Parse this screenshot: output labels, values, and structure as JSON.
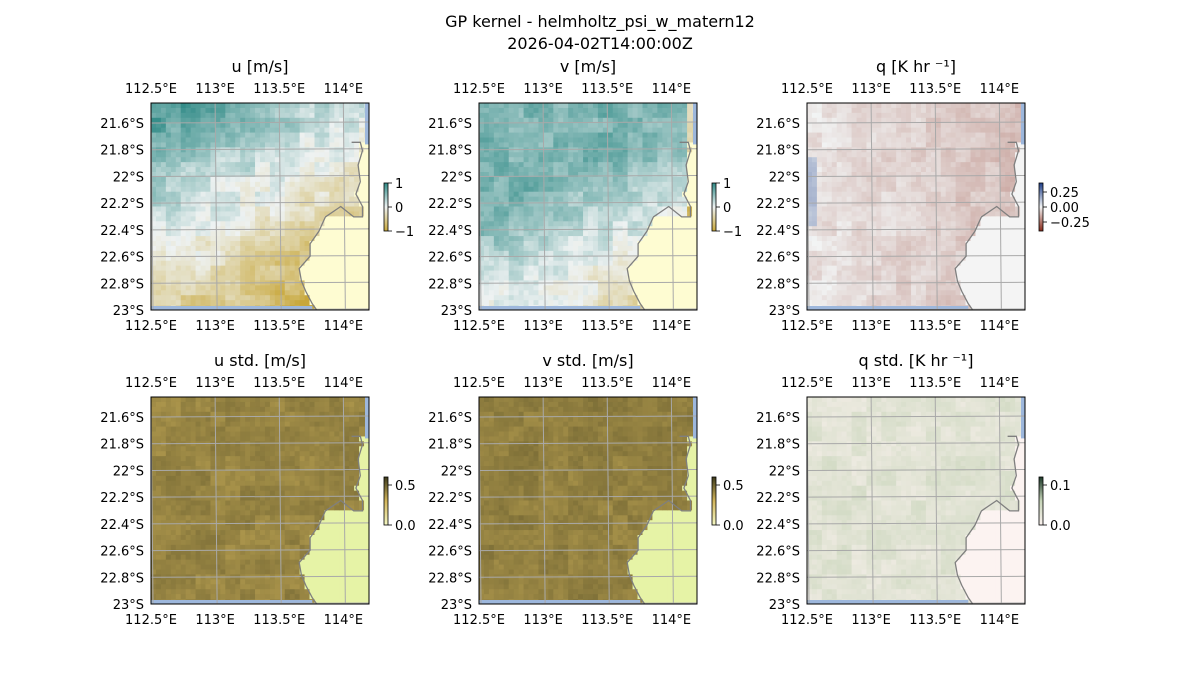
{
  "figure": {
    "title": "GP kernel - helmholtz_psi_w_matern12",
    "subtitle": "2026-04-02T14:00:00Z"
  },
  "chart_data": [
    {
      "type": "heatmap",
      "title": "u [m/s]",
      "xticks": [
        "112.5°E",
        "113°E",
        "113.5°E",
        "114°E"
      ],
      "yticks": [
        "21.6°S",
        "21.8°S",
        "22°S",
        "22.2°S",
        "22.4°S",
        "22.6°S",
        "22.8°S",
        "23°S"
      ],
      "xlim": [
        112.5,
        114.2
      ],
      "ylim": [
        -23.0,
        -21.45
      ],
      "colorbar": {
        "ticks": [
          "1",
          "0",
          "−1"
        ],
        "range": [
          -1,
          1
        ],
        "colors": [
          "#2f8a86",
          "#eef2f2",
          "#c8a73a"
        ]
      },
      "field": {
        "mean": 0.12,
        "pattern": "diagonal",
        "low": -1,
        "high": 1
      }
    },
    {
      "type": "heatmap",
      "title": "v [m/s]",
      "xticks": [
        "112.5°E",
        "113°E",
        "113.5°E",
        "114°E"
      ],
      "yticks": [
        "21.6°S",
        "21.8°S",
        "22°S",
        "22.2°S",
        "22.4°S",
        "22.6°S",
        "22.8°S",
        "23°S"
      ],
      "xlim": [
        112.5,
        114.2
      ],
      "ylim": [
        -23.0,
        -21.45
      ],
      "colorbar": {
        "ticks": [
          "1",
          "0",
          "−1"
        ],
        "range": [
          -1,
          1
        ],
        "colors": [
          "#2f8a86",
          "#eef2f2",
          "#c8a73a"
        ]
      },
      "field": {
        "mean": 0.2,
        "pattern": "diagonal2",
        "low": -1,
        "high": 1
      }
    },
    {
      "type": "heatmap",
      "title": "q [K hr ⁻¹]",
      "xticks": [
        "112.5°E",
        "113°E",
        "113.5°E",
        "114°E"
      ],
      "yticks": [
        "21.6°S",
        "21.8°S",
        "22°S",
        "22.2°S",
        "22.4°S",
        "22.6°S",
        "22.8°S",
        "23°S"
      ],
      "xlim": [
        112.5,
        114.2
      ],
      "ylim": [
        -23.0,
        -21.45
      ],
      "colorbar": {
        "ticks": [
          "0.25",
          "0.00",
          "−0.25"
        ],
        "range": [
          -0.4,
          0.4
        ],
        "colors": [
          "#1f3f8a",
          "#f2f4f4",
          "#8a2a1a"
        ]
      },
      "field": {
        "mean": -0.03,
        "pattern": "flat",
        "low": -0.4,
        "high": 0.4
      }
    },
    {
      "type": "heatmap",
      "title": "u std. [m/s]",
      "xticks": [
        "112.5°E",
        "113°E",
        "113.5°E",
        "114°E"
      ],
      "yticks": [
        "21.6°S",
        "21.8°S",
        "22°S",
        "22.2°S",
        "22.4°S",
        "22.6°S",
        "22.8°S",
        "23°S"
      ],
      "xlim": [
        112.5,
        114.2
      ],
      "ylim": [
        -23.0,
        -21.45
      ],
      "colorbar": {
        "ticks": [
          "0.5",
          "0.0"
        ],
        "range": [
          0,
          0.6
        ],
        "colors": [
          "#3d3a1c",
          "#d2b55c",
          "#f4f8c4"
        ]
      },
      "field": {
        "mean": 0.42,
        "pattern": "std",
        "low": 0,
        "high": 0.6
      }
    },
    {
      "type": "heatmap",
      "title": "v std. [m/s]",
      "xticks": [
        "112.5°E",
        "113°E",
        "113.5°E",
        "114°E"
      ],
      "yticks": [
        "21.6°S",
        "21.8°S",
        "22°S",
        "22.2°S",
        "22.4°S",
        "22.6°S",
        "22.8°S",
        "23°S"
      ],
      "xlim": [
        112.5,
        114.2
      ],
      "ylim": [
        -23.0,
        -21.45
      ],
      "colorbar": {
        "ticks": [
          "0.5",
          "0.0"
        ],
        "range": [
          0,
          0.6
        ],
        "colors": [
          "#3d3a1c",
          "#d2b55c",
          "#f4f8c4"
        ]
      },
      "field": {
        "mean": 0.43,
        "pattern": "std",
        "low": 0,
        "high": 0.6
      }
    },
    {
      "type": "heatmap",
      "title": "q std. [K hr ⁻¹]",
      "xticks": [
        "112.5°E",
        "113°E",
        "113.5°E",
        "114°E"
      ],
      "yticks": [
        "21.6°S",
        "21.8°S",
        "22°S",
        "22.2°S",
        "22.4°S",
        "22.6°S",
        "22.8°S",
        "23°S"
      ],
      "xlim": [
        112.5,
        114.2
      ],
      "ylim": [
        -23.0,
        -21.45
      ],
      "colorbar": {
        "ticks": [
          "0.1",
          "0.0"
        ],
        "range": [
          0,
          0.12
        ],
        "colors": [
          "#1e3a2a",
          "#c6d4b8",
          "#fbf2ef"
        ]
      },
      "field": {
        "mean": 0.03,
        "pattern": "stdq",
        "low": 0,
        "high": 0.12
      }
    }
  ],
  "colors": {
    "ocean_edge": "#9db7dc",
    "land": "#fefcd2",
    "land_std": "#e6f3a6",
    "land_q": "#f4f4f4",
    "land_qstd": "#fcf3f1",
    "coast": "#7f7f7f",
    "grid": "#a9a9a9"
  }
}
